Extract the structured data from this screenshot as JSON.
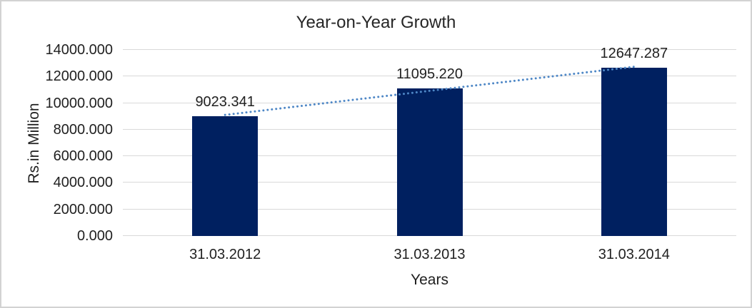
{
  "chart_data": {
    "type": "bar",
    "title": "Year-on-Year Growth",
    "xlabel": "Years",
    "ylabel": "Rs.in Million",
    "categories": [
      "31.03.2012",
      "31.03.2013",
      "31.03.2014"
    ],
    "values": [
      9023.341,
      11095.22,
      12647.287
    ],
    "value_labels": [
      "9023.341",
      "11095.220",
      "12647.287"
    ],
    "ylim": [
      0,
      14000
    ],
    "ytick_step": 2000,
    "ytick_labels": [
      "0.000",
      "2000.000",
      "4000.000",
      "6000.000",
      "8000.000",
      "10000.000",
      "12000.000",
      "14000.000"
    ],
    "grid": true,
    "legend_position": "none",
    "trendline": {
      "kind": "linear",
      "style": "dotted"
    },
    "colors": {
      "bar": "#002060",
      "trendline": "#4e87c6",
      "gridline": "#d9d9d9",
      "text": "#1f1f1f",
      "frame_border": "#d2d2d2",
      "background": "#ffffff"
    }
  }
}
